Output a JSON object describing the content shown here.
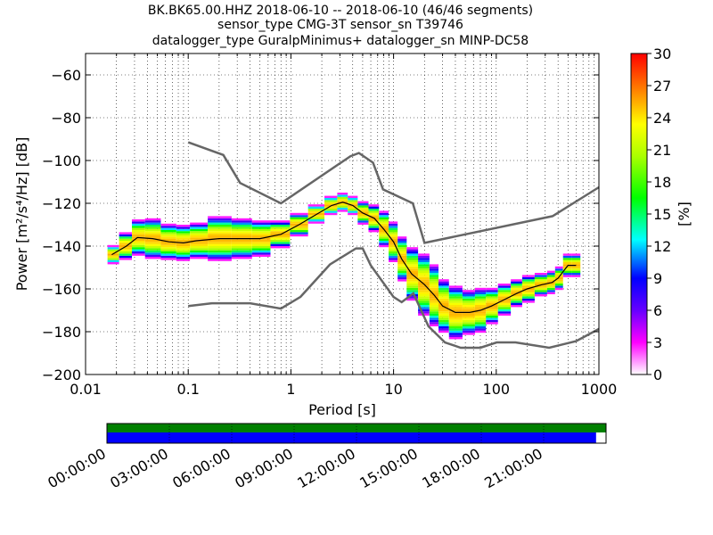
{
  "title_lines": [
    "BK.BK65.00.HHZ   2018-06-10 -- 2018-06-10  (46/46 segments)",
    "sensor_type CMG-3T sensor_sn T39746",
    "datalogger_type GuralpMinimus+ datalogger_sn MINP-DC58"
  ],
  "colorbar": {
    "label": "[%]",
    "ticks": [
      "0",
      "3",
      "6",
      "9",
      "12",
      "15",
      "18",
      "21",
      "24",
      "27",
      "30"
    ]
  },
  "timeline": {
    "labels": [
      "00:00:00",
      "03:00:00",
      "06:00:00",
      "09:00:00",
      "12:00:00",
      "15:00:00",
      "18:00:00",
      "21:00:00"
    ],
    "coverage_top_color": "#008000",
    "coverage_bottom_color": "#0000ff",
    "coverage_fraction": 0.98
  },
  "chart_data": {
    "type": "heatmap",
    "xscale": "log",
    "xlim": [
      0.01,
      1000
    ],
    "ylim": [
      -200,
      -50
    ],
    "xlabel": "Period [s]",
    "ylabel": "Power [m²/s⁴/Hz] [dB]",
    "x_ticks": [
      {
        "value": 0.01,
        "label": "0.01"
      },
      {
        "value": 0.1,
        "label": "0.1"
      },
      {
        "value": 1,
        "label": "1"
      },
      {
        "value": 10,
        "label": "10"
      },
      {
        "value": 100,
        "label": "100"
      },
      {
        "value": 1000,
        "label": "1000"
      }
    ],
    "y_ticks": [
      {
        "value": -60,
        "label": "−60"
      },
      {
        "value": -80,
        "label": "−80"
      },
      {
        "value": -100,
        "label": "−100"
      },
      {
        "value": -120,
        "label": "−120"
      },
      {
        "value": -140,
        "label": "−140"
      },
      {
        "value": -160,
        "label": "−160"
      },
      {
        "value": -180,
        "label": "−180"
      },
      {
        "value": -200,
        "label": "−200"
      }
    ],
    "grid": true,
    "colormap": [
      "#ffffff",
      "#ff00ff",
      "#6600ff",
      "#0000ff",
      "#00ffff",
      "#00ff00",
      "#aaff00",
      "#ffff00",
      "#ff8800",
      "#ff0000"
    ],
    "color_range": [
      0,
      30
    ],
    "high_noise_model": {
      "x": [
        0.1,
        0.22,
        0.32,
        0.8,
        3.8,
        4.6,
        6.3,
        7.9,
        15.4,
        20,
        354,
        1000
      ],
      "y": [
        -91.5,
        -97.4,
        -110.5,
        -120,
        -98,
        -96.5,
        -101,
        -113.5,
        -120,
        -138.5,
        -126,
        -112.5
      ]
    },
    "low_noise_model": {
      "x": [
        0.1,
        0.17,
        0.4,
        0.8,
        1.24,
        2.4,
        4.3,
        5,
        6,
        10,
        12,
        15.6,
        21.9,
        31.6,
        45,
        70,
        101,
        154,
        328,
        600,
        1000
      ],
      "y": [
        -168,
        -166.7,
        -166.7,
        -169.2,
        -163.7,
        -148.6,
        -141.1,
        -141.1,
        -149,
        -163.8,
        -166.2,
        -162.1,
        -177.5,
        -185,
        -187.5,
        -187.5,
        -185,
        -185,
        -187.5,
        -184.4,
        -178.7
      ]
    },
    "mode_curve": {
      "x": [
        0.018,
        0.025,
        0.032,
        0.045,
        0.065,
        0.09,
        0.12,
        0.2,
        0.35,
        0.5,
        0.8,
        1.2,
        1.8,
        2.5,
        3.2,
        4,
        5,
        6.5,
        8,
        10,
        12,
        15,
        20,
        25,
        30,
        40,
        55,
        70,
        90,
        120,
        160,
        200,
        280,
        350,
        400,
        500,
        600
      ],
      "y": [
        -144,
        -140,
        -136,
        -136.5,
        -138,
        -138.5,
        -137.5,
        -136.5,
        -136.5,
        -136.5,
        -134.5,
        -130,
        -125,
        -121,
        -119.5,
        -121,
        -124.5,
        -127,
        -132,
        -138,
        -146,
        -153,
        -158,
        -163,
        -168,
        -171,
        -171,
        -170,
        -168,
        -165,
        -162,
        -160,
        -158,
        -157,
        -155,
        -149,
        -149
      ]
    },
    "distribution": [
      {
        "x": 0.018,
        "mode": -144,
        "spread": 4
      },
      {
        "x": 0.025,
        "mode": -140,
        "spread": 6
      },
      {
        "x": 0.032,
        "mode": -136,
        "spread": 8
      },
      {
        "x": 0.045,
        "mode": -136.5,
        "spread": 9
      },
      {
        "x": 0.065,
        "mode": -138,
        "spread": 8
      },
      {
        "x": 0.09,
        "mode": -138.5,
        "spread": 8
      },
      {
        "x": 0.12,
        "mode": -137.5,
        "spread": 8
      },
      {
        "x": 0.2,
        "mode": -136.5,
        "spread": 10
      },
      {
        "x": 0.35,
        "mode": -136.5,
        "spread": 9
      },
      {
        "x": 0.5,
        "mode": -136.5,
        "spread": 8
      },
      {
        "x": 0.8,
        "mode": -134.5,
        "spread": 6
      },
      {
        "x": 1.2,
        "mode": -130,
        "spread": 5
      },
      {
        "x": 1.8,
        "mode": -125,
        "spread": 4
      },
      {
        "x": 2.5,
        "mode": -121,
        "spread": 4
      },
      {
        "x": 3.2,
        "mode": -119.5,
        "spread": 4
      },
      {
        "x": 4,
        "mode": -121,
        "spread": 4
      },
      {
        "x": 5,
        "mode": -124.5,
        "spread": 5
      },
      {
        "x": 6.5,
        "mode": -127,
        "spread": 6
      },
      {
        "x": 8,
        "mode": -132,
        "spread": 8
      },
      {
        "x": 10,
        "mode": -138,
        "spread": 9
      },
      {
        "x": 12,
        "mode": -146,
        "spread": 10
      },
      {
        "x": 15,
        "mode": -153,
        "spread": 12
      },
      {
        "x": 20,
        "mode": -158,
        "spread": 14
      },
      {
        "x": 25,
        "mode": -163,
        "spread": 14
      },
      {
        "x": 30,
        "mode": -168,
        "spread": 12
      },
      {
        "x": 40,
        "mode": -171,
        "spread": 12
      },
      {
        "x": 55,
        "mode": -171,
        "spread": 10
      },
      {
        "x": 70,
        "mode": -170,
        "spread": 10
      },
      {
        "x": 90,
        "mode": -168,
        "spread": 8
      },
      {
        "x": 120,
        "mode": -165,
        "spread": 7
      },
      {
        "x": 160,
        "mode": -162,
        "spread": 6
      },
      {
        "x": 200,
        "mode": -160,
        "spread": 6
      },
      {
        "x": 280,
        "mode": -158,
        "spread": 5
      },
      {
        "x": 350,
        "mode": -157,
        "spread": 5
      },
      {
        "x": 400,
        "mode": -155,
        "spread": 5
      },
      {
        "x": 500,
        "mode": -149,
        "spread": 5
      },
      {
        "x": 600,
        "mode": -149,
        "spread": 5
      }
    ]
  }
}
